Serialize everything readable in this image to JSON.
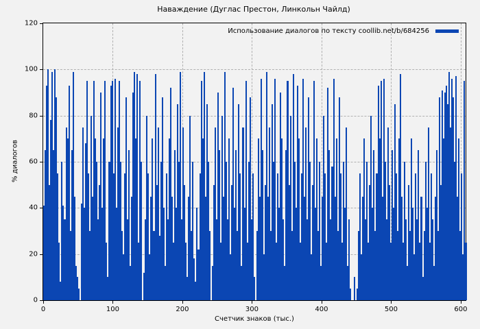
{
  "title": "Наваждение (Дуглас Престон, Линкольн Чайлд)",
  "legend": {
    "label": "Использование диалогов по тексту coollib.net/b/684256"
  },
  "axes": {
    "xlabel": "Счетчик знаков (тыс.)",
    "ylabel": "% диалогов"
  },
  "colors": {
    "background": "#f2f2f2",
    "bar": "#0b46b3",
    "grid": "#b0b0b0",
    "axis": "#000000",
    "text": "#000000"
  },
  "chart_data": {
    "type": "bar",
    "title": "Наваждение (Дуглас Престон, Линкольн Чайлд)",
    "xlabel": "Счетчик знаков (тыс.)",
    "ylabel": "% диалогов",
    "legend": "Использование диалогов по тексту coollib.net/b/684256",
    "legend_position": "top-right",
    "grid": true,
    "xlim": [
      0,
      607
    ],
    "ylim": [
      0,
      120
    ],
    "x_ticks": [
      0,
      100,
      200,
      300,
      400,
      500,
      600
    ],
    "y_ticks": [
      0,
      20,
      40,
      60,
      80,
      100,
      120
    ],
    "x_start": 0,
    "x_step": 2,
    "values": [
      41,
      65,
      93,
      100,
      50,
      78,
      99,
      65,
      100,
      88,
      55,
      25,
      8,
      60,
      41,
      35,
      75,
      70,
      93,
      30,
      65,
      99,
      45,
      15,
      10,
      5,
      0,
      42,
      75,
      40,
      68,
      95,
      55,
      30,
      80,
      45,
      95,
      70,
      60,
      35,
      50,
      90,
      40,
      70,
      95,
      25,
      10,
      60,
      93,
      95,
      55,
      96,
      40,
      75,
      95,
      60,
      30,
      20,
      55,
      88,
      35,
      65,
      15,
      45,
      90,
      99,
      70,
      98,
      25,
      95,
      60,
      0,
      12,
      35,
      80,
      55,
      20,
      45,
      70,
      30,
      98,
      50,
      75,
      28,
      60,
      88,
      40,
      15,
      55,
      35,
      70,
      92,
      45,
      25,
      65,
      40,
      85,
      60,
      99,
      35,
      75,
      50,
      25,
      10,
      45,
      80,
      30,
      60,
      18,
      8,
      40,
      22,
      55,
      95,
      70,
      99,
      45,
      85,
      60,
      30,
      0,
      15,
      50,
      75,
      35,
      90,
      65,
      25,
      80,
      45,
      99,
      60,
      35,
      70,
      20,
      50,
      92,
      40,
      65,
      30,
      85,
      55,
      15,
      75,
      40,
      95,
      25,
      60,
      88,
      35,
      55,
      10,
      0,
      30,
      70,
      45,
      96,
      65,
      20,
      50,
      99,
      45,
      75,
      30,
      85,
      60,
      96,
      25,
      55,
      40,
      90,
      70,
      35,
      15,
      65,
      95,
      50,
      80,
      30,
      98,
      60,
      40,
      93,
      70,
      25,
      55,
      96,
      45,
      75,
      35,
      88,
      60,
      20,
      50,
      95,
      40,
      70,
      30,
      60,
      15,
      45,
      80,
      55,
      25,
      92,
      65,
      35,
      58,
      96,
      45,
      70,
      30,
      88,
      55,
      25,
      60,
      40,
      75,
      15,
      35,
      5,
      0,
      0,
      10,
      0,
      5,
      30,
      55,
      20,
      45,
      70,
      35,
      60,
      25,
      50,
      80,
      40,
      65,
      30,
      55,
      93,
      70,
      95,
      45,
      96,
      60,
      35,
      75,
      50,
      25,
      65,
      40,
      85,
      55,
      30,
      70,
      98,
      45,
      25,
      60,
      35,
      15,
      50,
      30,
      70,
      40,
      20,
      55,
      35,
      65,
      25,
      45,
      10,
      30,
      60,
      40,
      75,
      25,
      55,
      35,
      15,
      45,
      65,
      30,
      88,
      50,
      91,
      70,
      90,
      93,
      85,
      99,
      75,
      96,
      88,
      60,
      97,
      45,
      70,
      30,
      55,
      20,
      95,
      25
    ]
  }
}
